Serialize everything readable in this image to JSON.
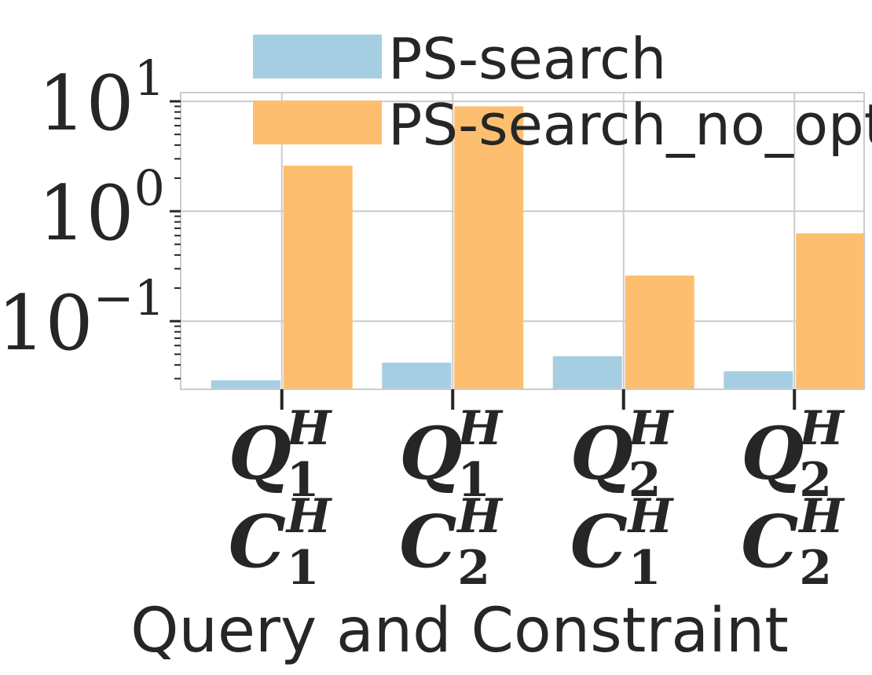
{
  "chart_data": {
    "type": "bar",
    "x_tick_labels": [
      {
        "query": "Q",
        "query_sub": "1",
        "constraint": "C",
        "constraint_sub": "1",
        "sup": "H"
      },
      {
        "query": "Q",
        "query_sub": "1",
        "constraint": "C",
        "constraint_sub": "2",
        "sup": "H"
      },
      {
        "query": "Q",
        "query_sub": "2",
        "constraint": "C",
        "constraint_sub": "1",
        "sup": "H"
      },
      {
        "query": "Q",
        "query_sub": "2",
        "constraint": "C",
        "constraint_sub": "2",
        "sup": "H"
      }
    ],
    "series": [
      {
        "name": "PS-search",
        "color": "#a6cee3",
        "values": [
          0.029,
          0.042,
          0.048,
          0.035
        ]
      },
      {
        "name": "PS-search_no_opt",
        "color": "#fdbf6f",
        "values": [
          2.6,
          9.0,
          0.26,
          0.63
        ]
      }
    ],
    "xlabel": "Query and Constraint",
    "ylabel": "",
    "yscale": "log",
    "ylim": [
      0.024,
      12
    ],
    "y_ticks": [
      {
        "value": 0.1,
        "base": "10",
        "exp": "−1"
      },
      {
        "value": 1,
        "base": "10",
        "exp": "0"
      },
      {
        "value": 10,
        "base": "10",
        "exp": "1"
      }
    ],
    "grid": true,
    "legend_position": "top-center"
  }
}
